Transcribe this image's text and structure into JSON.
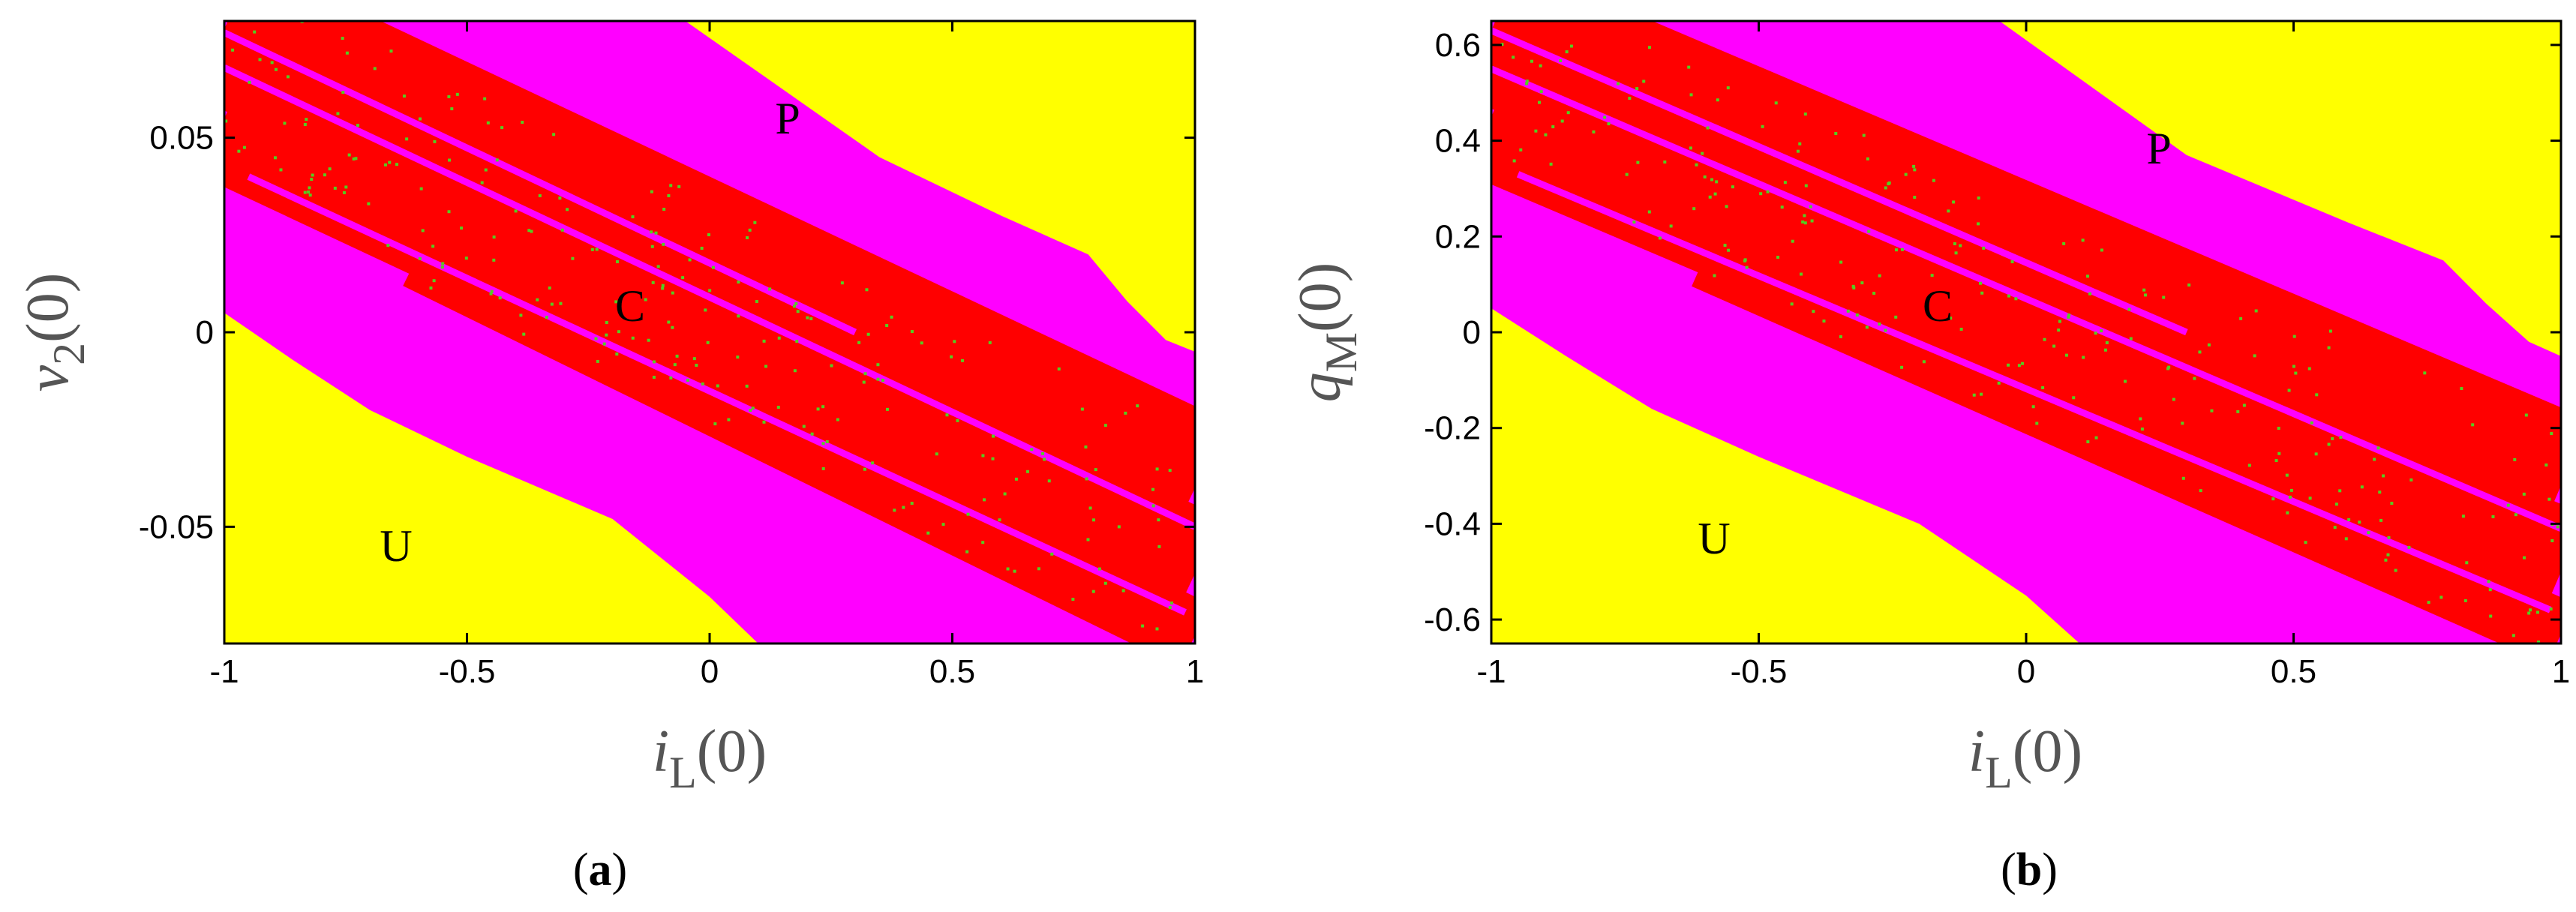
{
  "chart_data": [
    {
      "type": "heatmap",
      "panel_label": "a",
      "title": "",
      "xlabel": {
        "symbol": "i",
        "subscript": "L",
        "suffix": "(0)"
      },
      "ylabel": {
        "symbol": "v",
        "subscript": "2",
        "suffix": "(0)"
      },
      "xlim": [
        -1,
        1
      ],
      "ylim": [
        -0.08,
        0.08
      ],
      "xticks": [
        -1,
        -0.5,
        0,
        0.5,
        1
      ],
      "xtick_labels": [
        "-1",
        "-0.5",
        "0",
        "0.5",
        "1"
      ],
      "yticks": [
        -0.05,
        0,
        0.05
      ],
      "ytick_labels": [
        "-0.05",
        "0",
        "0.05"
      ],
      "region_labels": [
        {
          "text": "P",
          "x": 0.16,
          "y": 0.054
        },
        {
          "text": "C",
          "x": -0.16,
          "y": 0.007
        },
        {
          "text": "U",
          "x": -0.64,
          "y": -0.054
        }
      ],
      "regions": {
        "yellow_upper": [
          [
            -0.05,
            0.08
          ],
          [
            0.35,
            0.045
          ],
          [
            0.6,
            0.03
          ],
          [
            0.78,
            0.02
          ],
          [
            0.86,
            0.008
          ],
          [
            0.94,
            -0.002
          ],
          [
            1,
            -0.005
          ],
          [
            1,
            0.08
          ]
        ],
        "yellow_lower": [
          [
            -1,
            0.005
          ],
          [
            -0.86,
            -0.007
          ],
          [
            -0.7,
            -0.02
          ],
          [
            -0.5,
            -0.032
          ],
          [
            -0.2,
            -0.048
          ],
          [
            0,
            -0.068
          ],
          [
            0.1,
            -0.08
          ],
          [
            -1,
            -0.08
          ]
        ],
        "red_bands": [
          {
            "start": [
              -1,
              0.078
            ],
            "end": [
              1,
              -0.04
            ],
            "width": 0.038
          },
          {
            "start": [
              -1,
              0.055
            ],
            "end": [
              1,
              -0.062
            ],
            "width": 0.032
          },
          {
            "start": [
              -0.6,
              0.02
            ],
            "end": [
              1,
              -0.078
            ],
            "width": 0.018
          }
        ],
        "magenta_lines": [
          {
            "start": [
              -1,
              0.068
            ],
            "end": [
              1,
              -0.05
            ]
          },
          {
            "start": [
              -0.95,
              0.04
            ],
            "end": [
              0.98,
              -0.072
            ]
          },
          {
            "start": [
              -1,
              0.077
            ],
            "end": [
              0.3,
              0.0
            ]
          }
        ]
      }
    },
    {
      "type": "heatmap",
      "panel_label": "b",
      "title": "",
      "xlabel": {
        "symbol": "i",
        "subscript": "L",
        "suffix": "(0)"
      },
      "ylabel": {
        "symbol": "q",
        "subscript": "M",
        "suffix": "(0)"
      },
      "xlim": [
        -1,
        1
      ],
      "ylim": [
        -0.65,
        0.65
      ],
      "xticks": [
        -1,
        -0.5,
        0,
        0.5,
        1
      ],
      "xtick_labels": [
        "-1",
        "-0.5",
        "0",
        "0.5",
        "1"
      ],
      "yticks": [
        -0.6,
        -0.4,
        -0.2,
        0,
        0.2,
        0.4,
        0.6
      ],
      "ytick_labels": [
        "-0.6",
        "-0.4",
        "-0.2",
        "0",
        "0.2",
        "0.4",
        "0.6"
      ],
      "region_labels": [
        {
          "text": "P",
          "x": 0.24,
          "y": 0.36
        },
        {
          "text": "C",
          "x": -0.2,
          "y": 0.05
        },
        {
          "text": "U",
          "x": -0.6,
          "y": -0.42
        }
      ],
      "regions": {
        "yellow_upper": [
          [
            -0.05,
            0.65
          ],
          [
            0.3,
            0.37
          ],
          [
            0.6,
            0.23
          ],
          [
            0.78,
            0.15
          ],
          [
            0.86,
            0.06
          ],
          [
            0.94,
            -0.02
          ],
          [
            1,
            -0.05
          ],
          [
            1,
            0.65
          ]
        ],
        "yellow_lower": [
          [
            -1,
            0.05
          ],
          [
            -0.86,
            -0.05
          ],
          [
            -0.7,
            -0.16
          ],
          [
            -0.5,
            -0.26
          ],
          [
            -0.2,
            -0.4
          ],
          [
            0,
            -0.55
          ],
          [
            0.1,
            -0.65
          ],
          [
            -1,
            -0.65
          ]
        ],
        "red_bands": [
          {
            "start": [
              -1,
              0.63
            ],
            "end": [
              1,
              -0.32
            ],
            "width": 0.3
          },
          {
            "start": [
              -1,
              0.45
            ],
            "end": [
              1,
              -0.5
            ],
            "width": 0.26
          },
          {
            "start": [
              -0.6,
              0.16
            ],
            "end": [
              1,
              -0.63
            ],
            "width": 0.14
          }
        ],
        "magenta_lines": [
          {
            "start": [
              -1,
              0.55
            ],
            "end": [
              1,
              -0.41
            ]
          },
          {
            "start": [
              -0.95,
              0.33
            ],
            "end": [
              0.98,
              -0.58
            ]
          },
          {
            "start": [
              -1,
              0.63
            ],
            "end": [
              0.3,
              0.0
            ]
          }
        ]
      }
    }
  ],
  "colors": {
    "stable_point": "#ffff00",
    "periodic": "#ff00ff",
    "chaotic": "#ff0000",
    "chaotic_dots": "#55cc22",
    "frame": "#000000"
  }
}
